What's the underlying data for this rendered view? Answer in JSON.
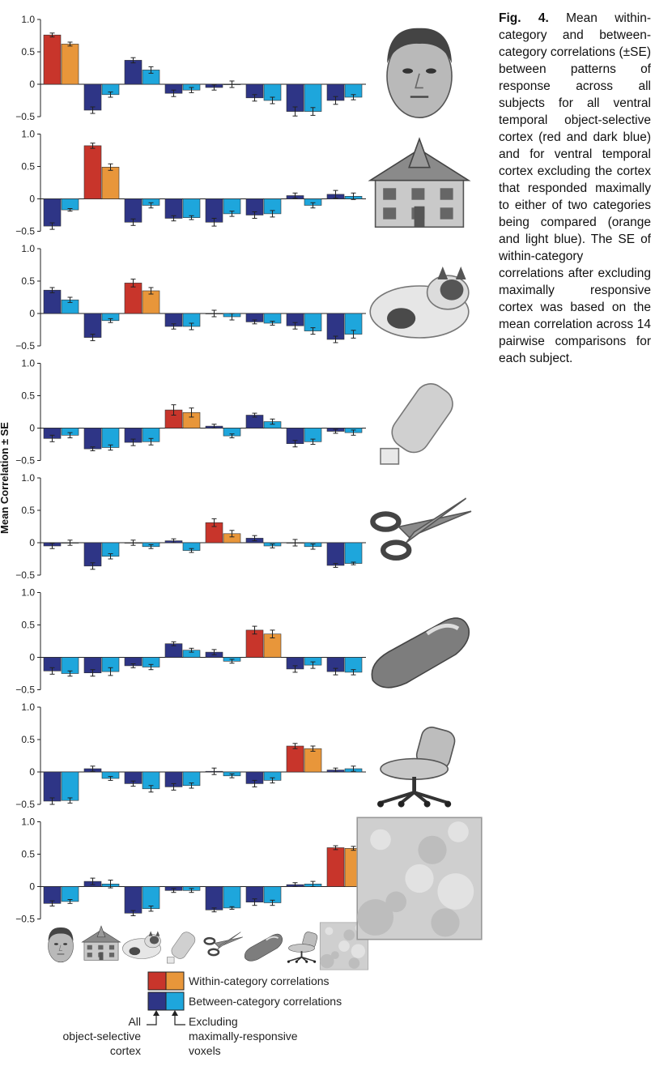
{
  "caption": {
    "label": "Fig. 4.",
    "text": "Mean within-category and between-category correlations (±SE) between patterns of response across all subjects for all ventral temporal object-selective cortex (red and dark blue) and for ventral temporal cortex excluding the cortex that responded maximally to either of two categories being compared (orange and light blue). The SE of within-category correlations after excluding maximally responsive cortex was based on the mean correlation across 14 pairwise comparisons for each subject."
  },
  "colors": {
    "within_all": "#c8352b",
    "within_excl": "#e8963a",
    "between_all": "#2e3586",
    "between_excl": "#1ea6dc"
  },
  "icons": [
    "face-photo",
    "house-photo",
    "cat-photo",
    "bottle-photo",
    "scissors-photo",
    "shoe-photo",
    "chair-photo",
    "scrambled-photo"
  ],
  "chart_data": {
    "type": "bar",
    "ylabel": "Mean Correlation ± SE",
    "ylim": [
      -0.5,
      1.0
    ],
    "yticks": [
      "1.0",
      "0.5",
      "0",
      "−0.5"
    ],
    "categories": [
      "faces",
      "houses",
      "cats",
      "bottles",
      "scissors",
      "shoes",
      "chairs",
      "scrambled"
    ],
    "series_names": [
      "Within-category correlations",
      "Between-category correlations"
    ],
    "panels": [
      {
        "reference": "faces",
        "all": [
          0.76,
          -0.4,
          0.37,
          -0.14,
          -0.05,
          -0.21,
          -0.42,
          -0.25
        ],
        "excl": [
          0.62,
          -0.16,
          0.22,
          -0.09,
          0.0,
          -0.25,
          -0.42,
          -0.2
        ],
        "err_all": [
          0.03,
          0.05,
          0.04,
          0.05,
          0.04,
          0.05,
          0.07,
          0.06
        ],
        "err_excl": [
          0.03,
          0.04,
          0.05,
          0.04,
          0.05,
          0.05,
          0.06,
          0.04
        ]
      },
      {
        "reference": "houses",
        "all": [
          -0.42,
          0.82,
          -0.36,
          -0.3,
          -0.36,
          -0.25,
          0.05,
          0.07
        ],
        "excl": [
          -0.17,
          0.49,
          -0.1,
          -0.29,
          -0.23,
          -0.23,
          -0.1,
          0.04
        ],
        "err_all": [
          0.05,
          0.04,
          0.05,
          0.04,
          0.06,
          0.05,
          0.04,
          0.06
        ],
        "err_excl": [
          0.02,
          0.05,
          0.04,
          0.03,
          0.04,
          0.05,
          0.04,
          0.05
        ]
      },
      {
        "reference": "cats",
        "all": [
          0.36,
          -0.37,
          0.47,
          -0.2,
          0.0,
          -0.13,
          -0.19,
          -0.4
        ],
        "excl": [
          0.21,
          -0.11,
          0.35,
          -0.2,
          -0.05,
          -0.15,
          -0.27,
          -0.32
        ],
        "err_all": [
          0.04,
          0.05,
          0.06,
          0.04,
          0.05,
          0.03,
          0.05,
          0.05
        ],
        "err_excl": [
          0.04,
          0.03,
          0.05,
          0.05,
          0.05,
          0.03,
          0.05,
          0.06
        ]
      },
      {
        "reference": "bottles",
        "all": [
          -0.16,
          -0.32,
          -0.22,
          0.28,
          0.03,
          0.2,
          -0.24,
          -0.05
        ],
        "excl": [
          -0.11,
          -0.3,
          -0.21,
          0.24,
          -0.12,
          0.1,
          -0.21,
          -0.07
        ],
        "err_all": [
          0.05,
          0.03,
          0.05,
          0.08,
          0.03,
          0.03,
          0.05,
          0.03
        ],
        "err_excl": [
          0.04,
          0.04,
          0.05,
          0.07,
          0.03,
          0.04,
          0.04,
          0.04
        ]
      },
      {
        "reference": "scissors",
        "all": [
          -0.05,
          -0.36,
          0.0,
          0.03,
          0.31,
          0.07,
          0.0,
          -0.35
        ],
        "excl": [
          0.0,
          -0.21,
          -0.06,
          -0.12,
          0.14,
          -0.05,
          -0.06,
          -0.32
        ],
        "err_all": [
          0.04,
          0.05,
          0.04,
          0.03,
          0.06,
          0.04,
          0.05,
          0.03
        ],
        "err_excl": [
          0.04,
          0.04,
          0.03,
          0.03,
          0.05,
          0.03,
          0.04,
          0.02
        ]
      },
      {
        "reference": "shoes",
        "all": [
          -0.21,
          -0.24,
          -0.13,
          0.21,
          0.08,
          0.42,
          -0.18,
          -0.22
        ],
        "excl": [
          -0.25,
          -0.22,
          -0.15,
          0.11,
          -0.06,
          0.36,
          -0.12,
          -0.23
        ],
        "err_all": [
          0.05,
          0.05,
          0.03,
          0.03,
          0.04,
          0.06,
          0.05,
          0.05
        ],
        "err_excl": [
          0.04,
          0.06,
          0.04,
          0.03,
          0.03,
          0.06,
          0.05,
          0.04
        ]
      },
      {
        "reference": "chairs",
        "all": [
          -0.45,
          0.05,
          -0.18,
          -0.23,
          0.01,
          -0.18,
          0.4,
          0.03
        ],
        "excl": [
          -0.44,
          -0.1,
          -0.26,
          -0.21,
          -0.06,
          -0.13,
          0.36,
          0.05
        ],
        "err_all": [
          0.05,
          0.04,
          0.04,
          0.05,
          0.05,
          0.05,
          0.04,
          0.03
        ],
        "err_excl": [
          0.04,
          0.03,
          0.05,
          0.04,
          0.03,
          0.04,
          0.04,
          0.04
        ]
      },
      {
        "reference": "scrambled",
        "all": [
          -0.26,
          0.08,
          -0.41,
          -0.06,
          -0.36,
          -0.24,
          0.03,
          0.6
        ],
        "excl": [
          -0.23,
          0.04,
          -0.34,
          -0.06,
          -0.33,
          -0.25,
          0.04,
          0.59
        ],
        "err_all": [
          0.04,
          0.05,
          0.04,
          0.03,
          0.03,
          0.05,
          0.03,
          0.03
        ],
        "err_excl": [
          0.03,
          0.06,
          0.04,
          0.03,
          0.02,
          0.04,
          0.04,
          0.03
        ]
      }
    ],
    "legend": {
      "within": "Within-category correlations",
      "between": "Between-category correlations",
      "left_note": [
        "All",
        "object-selective",
        "cortex"
      ],
      "right_note": [
        "Excluding",
        "maximally-responsive",
        "voxels"
      ]
    }
  }
}
